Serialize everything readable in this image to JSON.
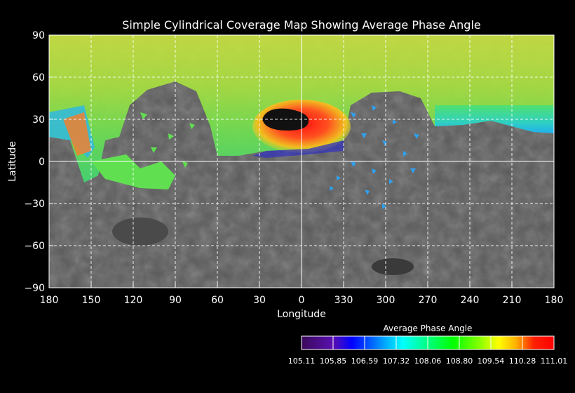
{
  "chart_data": {
    "type": "heatmap",
    "title": "Simple Cylindrical Coverage Map Showing Average Phase Angle",
    "xlabel": "Longitude",
    "ylabel": "Latitude",
    "x_ticks": [
      "180",
      "150",
      "120",
      "90",
      "60",
      "30",
      "0",
      "330",
      "300",
      "270",
      "240",
      "210",
      "180"
    ],
    "y_ticks": [
      "90",
      "60",
      "30",
      "0",
      "−30",
      "−60",
      "−90"
    ],
    "xlim": [
      180,
      -180
    ],
    "ylim": [
      -90,
      90
    ],
    "grid": true,
    "colorbar": {
      "title": "Average Phase Angle",
      "ticks": [
        "105.11",
        "105.85",
        "106.59",
        "107.32",
        "108.06",
        "108.80",
        "109.54",
        "110.28",
        "111.01"
      ],
      "range": [
        105.11,
        111.01
      ],
      "colors": [
        "#3a0a5a",
        "#5a10b0",
        "#0000ff",
        "#0080ff",
        "#00ffff",
        "#00ff80",
        "#00ff00",
        "#80ff00",
        "#ffff00",
        "#ff8000",
        "#ff0000"
      ],
      "placement": "bottom-right"
    }
  }
}
